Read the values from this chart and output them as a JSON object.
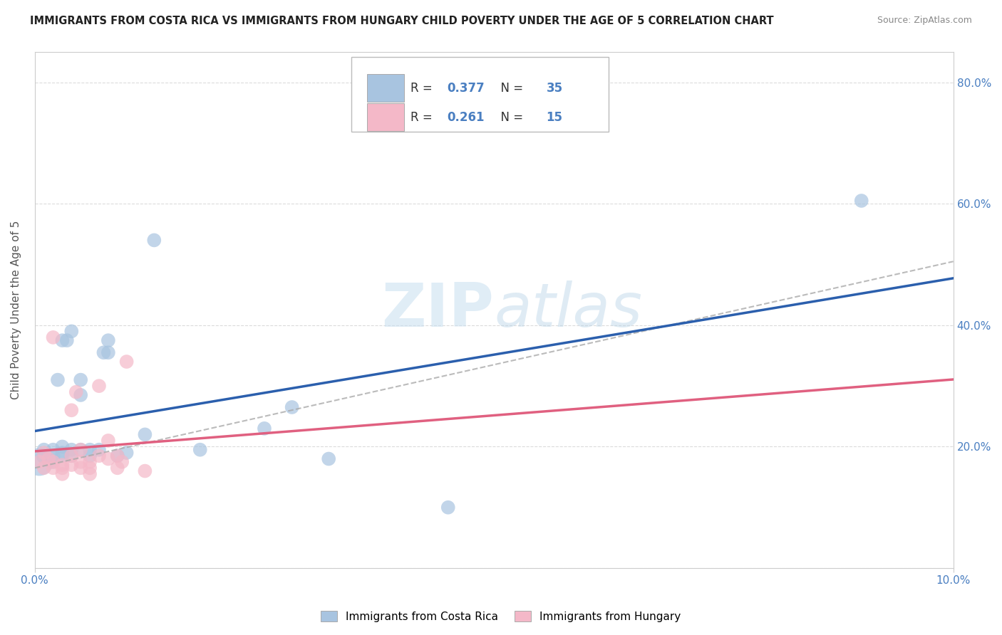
{
  "title": "IMMIGRANTS FROM COSTA RICA VS IMMIGRANTS FROM HUNGARY CHILD POVERTY UNDER THE AGE OF 5 CORRELATION CHART",
  "source": "Source: ZipAtlas.com",
  "ylabel": "Child Poverty Under the Age of 5",
  "xlim": [
    0.0,
    0.1
  ],
  "ylim": [
    0.0,
    0.85
  ],
  "yticks": [
    0.0,
    0.2,
    0.4,
    0.6,
    0.8
  ],
  "ytick_labels": [
    "",
    "20.0%",
    "40.0%",
    "60.0%",
    "80.0%"
  ],
  "xticks": [
    0.0,
    0.1
  ],
  "xtick_labels": [
    "0.0%",
    "10.0%"
  ],
  "costa_rica_R": 0.377,
  "costa_rica_N": 35,
  "hungary_R": 0.261,
  "hungary_N": 15,
  "costa_rica_color": "#a8c4e0",
  "hungary_color": "#f4b8c8",
  "costa_rica_line_color": "#2b5fad",
  "hungary_line_color": "#e06080",
  "axis_label_color": "#4a7fc1",
  "watermark_color": "#d0e8f5",
  "background_color": "#ffffff",
  "grid_color": "#cccccc",
  "costa_rica_x": [
    0.0005,
    0.001,
    0.001,
    0.0015,
    0.002,
    0.002,
    0.002,
    0.0025,
    0.003,
    0.003,
    0.003,
    0.003,
    0.0035,
    0.004,
    0.004,
    0.004,
    0.005,
    0.005,
    0.005,
    0.006,
    0.006,
    0.007,
    0.0075,
    0.008,
    0.008,
    0.009,
    0.01,
    0.012,
    0.013,
    0.018,
    0.025,
    0.028,
    0.032,
    0.045,
    0.09
  ],
  "costa_rica_y": [
    0.175,
    0.185,
    0.195,
    0.18,
    0.175,
    0.185,
    0.195,
    0.31,
    0.185,
    0.19,
    0.2,
    0.375,
    0.375,
    0.185,
    0.195,
    0.39,
    0.195,
    0.285,
    0.31,
    0.185,
    0.195,
    0.195,
    0.355,
    0.355,
    0.375,
    0.185,
    0.19,
    0.22,
    0.54,
    0.195,
    0.23,
    0.265,
    0.18,
    0.1,
    0.605
  ],
  "costa_rica_size": [
    800,
    250,
    200,
    200,
    200,
    200,
    200,
    200,
    200,
    200,
    200,
    200,
    200,
    200,
    200,
    200,
    200,
    200,
    200,
    200,
    200,
    200,
    200,
    200,
    200,
    200,
    200,
    200,
    200,
    200,
    200,
    200,
    200,
    200,
    200
  ],
  "hungary_x": [
    0.0005,
    0.001,
    0.0015,
    0.002,
    0.002,
    0.003,
    0.003,
    0.004,
    0.004,
    0.005,
    0.005,
    0.006,
    0.007,
    0.008,
    0.009
  ],
  "hungary_y": [
    0.175,
    0.165,
    0.18,
    0.165,
    0.175,
    0.155,
    0.165,
    0.185,
    0.26,
    0.165,
    0.175,
    0.165,
    0.185,
    0.21,
    0.185
  ],
  "hungary_size": [
    200,
    200,
    200,
    200,
    200,
    200,
    200,
    200,
    200,
    200,
    200,
    200,
    200,
    200,
    200
  ],
  "hungary_extra_x": [
    0.001,
    0.002,
    0.003,
    0.004,
    0.0045,
    0.005,
    0.006,
    0.006,
    0.007,
    0.008,
    0.009,
    0.0095,
    0.01,
    0.012
  ],
  "hungary_extra_y": [
    0.19,
    0.38,
    0.17,
    0.17,
    0.29,
    0.195,
    0.155,
    0.175,
    0.3,
    0.18,
    0.165,
    0.175,
    0.34,
    0.16
  ],
  "hungary_extra_size": [
    200,
    200,
    200,
    200,
    200,
    200,
    200,
    200,
    200,
    200,
    200,
    200,
    200,
    200
  ]
}
